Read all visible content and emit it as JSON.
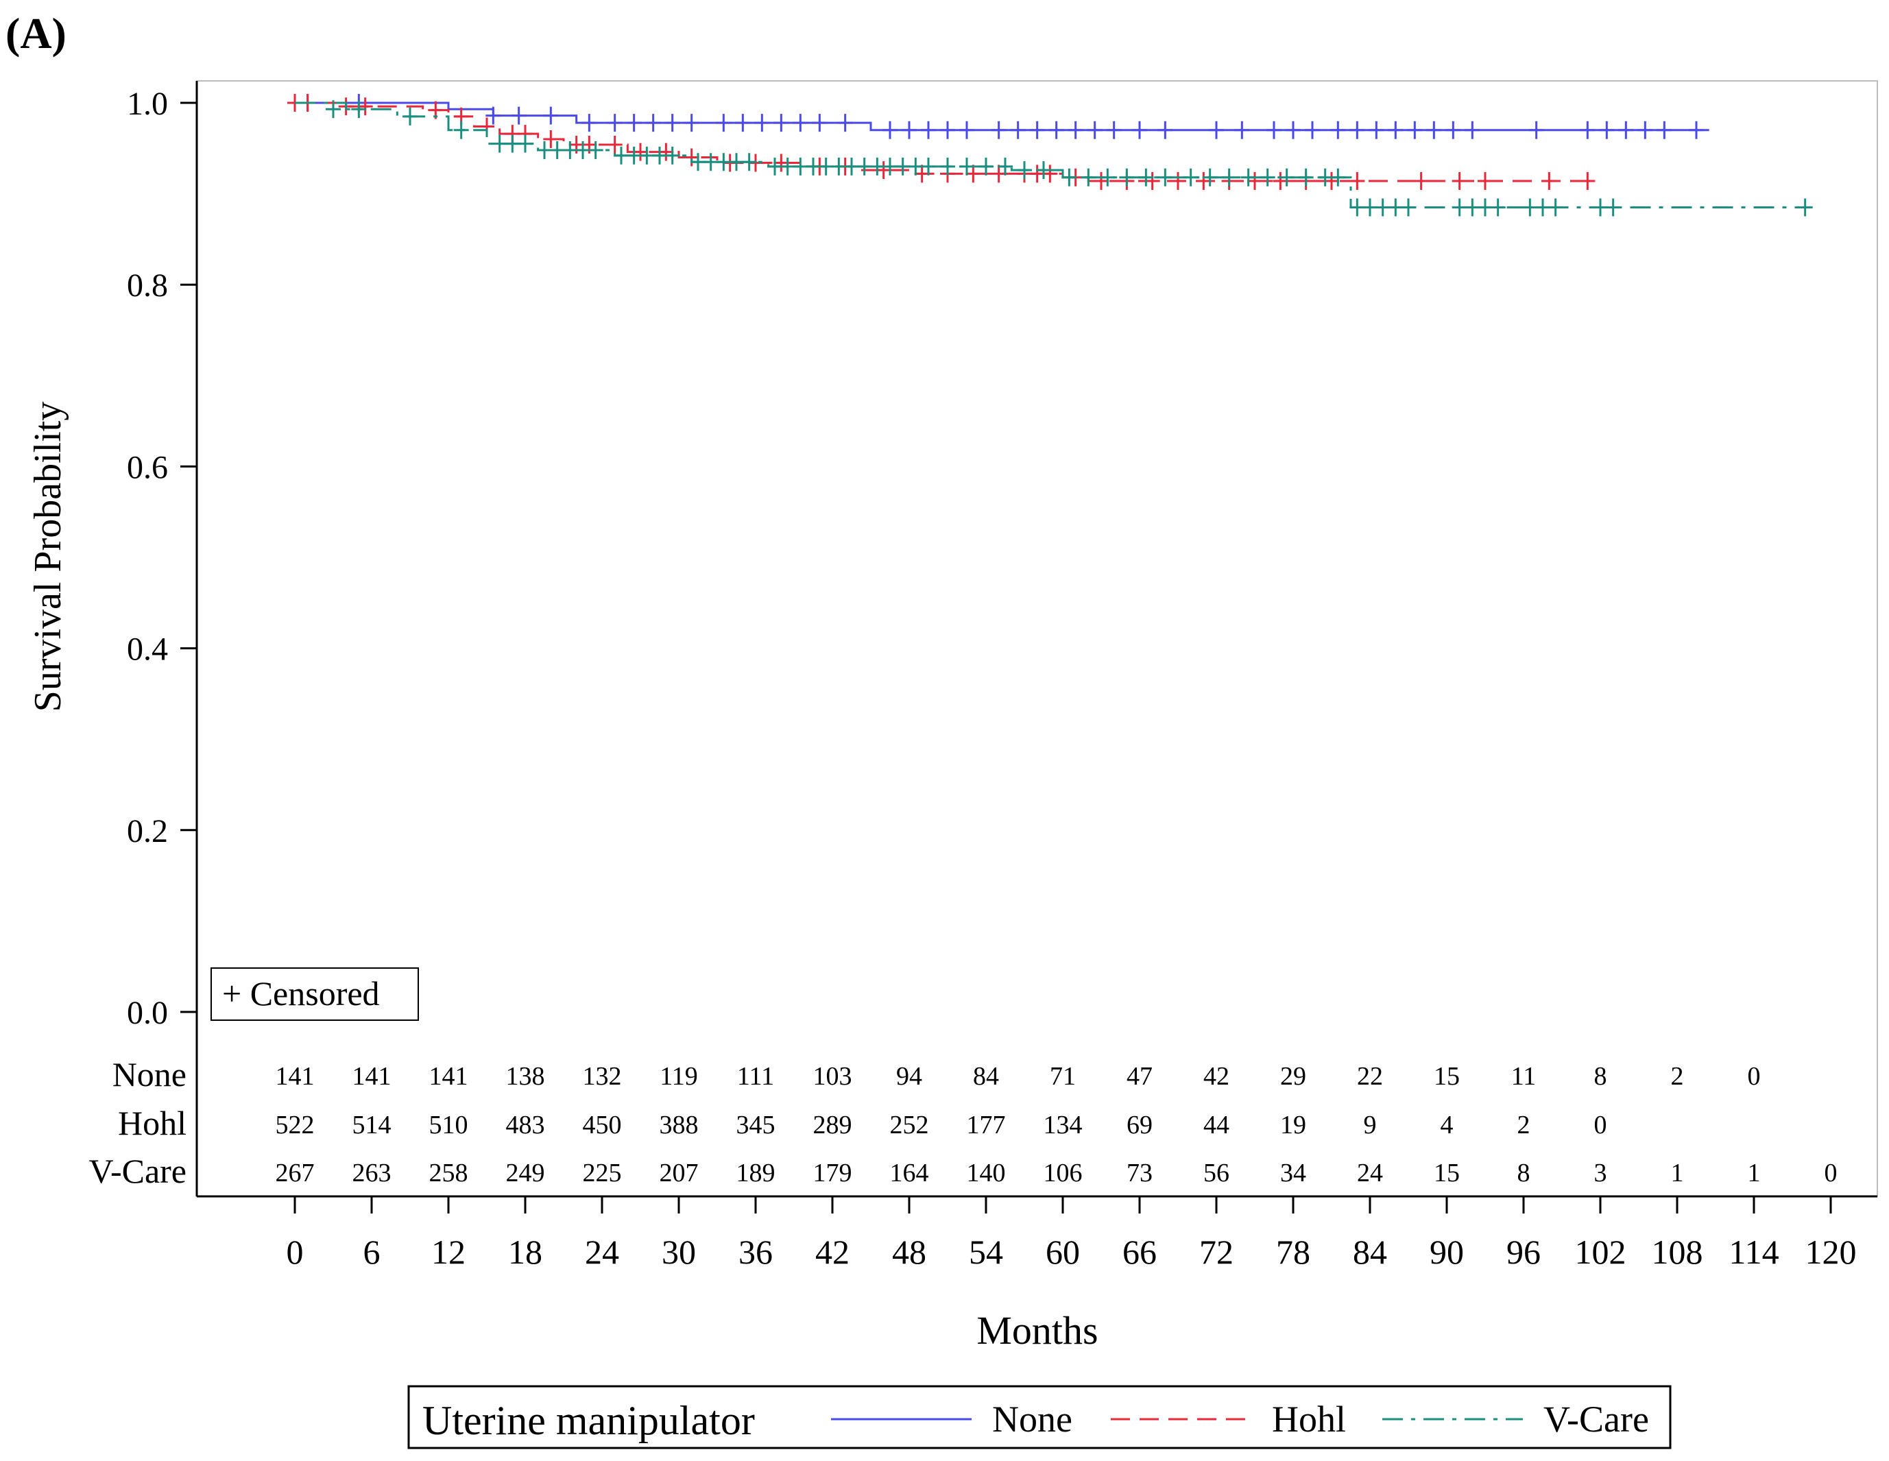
{
  "panel_label": "(A)",
  "chart_data": {
    "type": "line",
    "subtype": "kaplan-meier",
    "title": "",
    "xlabel": "Months",
    "ylabel": "Survival Probability",
    "xlim": [
      0,
      120
    ],
    "ylim": [
      0,
      1
    ],
    "xticks": [
      0,
      6,
      12,
      18,
      24,
      30,
      36,
      42,
      48,
      54,
      60,
      66,
      72,
      78,
      84,
      90,
      96,
      102,
      108,
      114,
      120
    ],
    "yticks": [
      "0.0",
      "0.2",
      "0.4",
      "0.6",
      "0.8",
      "1.0"
    ],
    "censor_legend": "+ Censored",
    "legend": {
      "title": "Uterine manipulator",
      "position": "bottom",
      "entries": [
        "None",
        "Hohl",
        "V-Care"
      ]
    },
    "series": [
      {
        "name": "None",
        "color": "#4a4ae8",
        "dash": "solid",
        "steps": [
          [
            0,
            1.0
          ],
          [
            12,
            0.993
          ],
          [
            15.5,
            0.986
          ],
          [
            22,
            0.978
          ],
          [
            45,
            0.97
          ],
          [
            110.5,
            0.97
          ]
        ],
        "censored": [
          [
            1,
            1.0
          ],
          [
            5,
            1.0
          ],
          [
            15.5,
            0.986
          ],
          [
            17.5,
            0.986
          ],
          [
            20,
            0.986
          ],
          [
            23,
            0.978
          ],
          [
            25,
            0.978
          ],
          [
            26.5,
            0.978
          ],
          [
            28,
            0.978
          ],
          [
            29.5,
            0.978
          ],
          [
            31,
            0.978
          ],
          [
            33.5,
            0.978
          ],
          [
            35,
            0.978
          ],
          [
            36.5,
            0.978
          ],
          [
            38,
            0.978
          ],
          [
            39.5,
            0.978
          ],
          [
            41,
            0.978
          ],
          [
            43,
            0.978
          ],
          [
            46.5,
            0.97
          ],
          [
            48,
            0.97
          ],
          [
            49.5,
            0.97
          ],
          [
            51,
            0.97
          ],
          [
            52.5,
            0.97
          ],
          [
            55,
            0.97
          ],
          [
            56.5,
            0.97
          ],
          [
            58,
            0.97
          ],
          [
            59.5,
            0.97
          ],
          [
            61,
            0.97
          ],
          [
            62.5,
            0.97
          ],
          [
            64,
            0.97
          ],
          [
            66,
            0.97
          ],
          [
            68,
            0.97
          ],
          [
            72,
            0.97
          ],
          [
            74,
            0.97
          ],
          [
            76.5,
            0.97
          ],
          [
            78,
            0.97
          ],
          [
            79.5,
            0.97
          ],
          [
            81.5,
            0.97
          ],
          [
            83,
            0.97
          ],
          [
            84.5,
            0.97
          ],
          [
            86,
            0.97
          ],
          [
            87.5,
            0.97
          ],
          [
            89,
            0.97
          ],
          [
            90.5,
            0.97
          ],
          [
            92,
            0.97
          ],
          [
            97,
            0.97
          ],
          [
            101,
            0.97
          ],
          [
            102.5,
            0.97
          ],
          [
            104,
            0.97
          ],
          [
            105.5,
            0.97
          ],
          [
            107,
            0.97
          ],
          [
            109.5,
            0.97
          ]
        ]
      },
      {
        "name": "Hohl",
        "color": "#e8283a",
        "dash": "dashed",
        "steps": [
          [
            0,
            1.0
          ],
          [
            4,
            0.996
          ],
          [
            10,
            0.992
          ],
          [
            12,
            0.985
          ],
          [
            14,
            0.974
          ],
          [
            16,
            0.966
          ],
          [
            19,
            0.96
          ],
          [
            21,
            0.954
          ],
          [
            26,
            0.946
          ],
          [
            30,
            0.94
          ],
          [
            33,
            0.934
          ],
          [
            40,
            0.93
          ],
          [
            44,
            0.926
          ],
          [
            48,
            0.922
          ],
          [
            56,
            0.922
          ],
          [
            60,
            0.918
          ],
          [
            62,
            0.914
          ],
          [
            84,
            0.914
          ],
          [
            101,
            0.914
          ]
        ],
        "censored": [
          [
            0,
            1.0
          ],
          [
            1,
            1.0
          ],
          [
            4,
            0.996
          ],
          [
            5.5,
            0.996
          ],
          [
            11,
            0.992
          ],
          [
            13,
            0.985
          ],
          [
            15,
            0.974
          ],
          [
            17,
            0.966
          ],
          [
            18,
            0.966
          ],
          [
            20,
            0.96
          ],
          [
            22,
            0.954
          ],
          [
            23,
            0.954
          ],
          [
            25,
            0.954
          ],
          [
            27,
            0.946
          ],
          [
            29,
            0.946
          ],
          [
            31,
            0.94
          ],
          [
            34,
            0.934
          ],
          [
            36,
            0.934
          ],
          [
            38,
            0.934
          ],
          [
            41,
            0.93
          ],
          [
            43,
            0.93
          ],
          [
            46,
            0.926
          ],
          [
            49,
            0.922
          ],
          [
            51,
            0.922
          ],
          [
            53,
            0.922
          ],
          [
            55,
            0.922
          ],
          [
            57,
            0.922
          ],
          [
            58,
            0.922
          ],
          [
            59,
            0.922
          ],
          [
            61,
            0.918
          ],
          [
            63,
            0.914
          ],
          [
            65,
            0.914
          ],
          [
            67,
            0.914
          ],
          [
            69,
            0.914
          ],
          [
            71,
            0.914
          ],
          [
            73,
            0.914
          ],
          [
            75,
            0.914
          ],
          [
            77,
            0.914
          ],
          [
            79,
            0.914
          ],
          [
            81,
            0.914
          ],
          [
            83,
            0.914
          ],
          [
            88,
            0.914
          ],
          [
            91,
            0.914
          ],
          [
            93,
            0.914
          ],
          [
            98,
            0.914
          ],
          [
            101,
            0.914
          ]
        ]
      },
      {
        "name": "V-Care",
        "color": "#1a8f80",
        "dash": "dashdot",
        "steps": [
          [
            0,
            1.0
          ],
          [
            4,
            0.993
          ],
          [
            8,
            0.985
          ],
          [
            12,
            0.97
          ],
          [
            15,
            0.955
          ],
          [
            19,
            0.948
          ],
          [
            25,
            0.942
          ],
          [
            31,
            0.935
          ],
          [
            37,
            0.93
          ],
          [
            56,
            0.926
          ],
          [
            60,
            0.918
          ],
          [
            82,
            0.918
          ],
          [
            82.5,
            0.885
          ],
          [
            118,
            0.885
          ]
        ],
        "censored": [
          [
            3,
            0.993
          ],
          [
            5,
            0.993
          ],
          [
            9,
            0.985
          ],
          [
            13,
            0.97
          ],
          [
            16,
            0.955
          ],
          [
            17,
            0.955
          ],
          [
            18,
            0.955
          ],
          [
            19.5,
            0.948
          ],
          [
            20.5,
            0.948
          ],
          [
            21.5,
            0.948
          ],
          [
            22.5,
            0.948
          ],
          [
            23.5,
            0.948
          ],
          [
            25.5,
            0.942
          ],
          [
            26.5,
            0.942
          ],
          [
            27.5,
            0.942
          ],
          [
            28.5,
            0.942
          ],
          [
            29.5,
            0.942
          ],
          [
            31.5,
            0.935
          ],
          [
            32.5,
            0.935
          ],
          [
            33.5,
            0.935
          ],
          [
            34.5,
            0.935
          ],
          [
            35.5,
            0.935
          ],
          [
            37.5,
            0.93
          ],
          [
            38.5,
            0.93
          ],
          [
            39.5,
            0.93
          ],
          [
            40.5,
            0.93
          ],
          [
            41.5,
            0.93
          ],
          [
            42.5,
            0.93
          ],
          [
            43.5,
            0.93
          ],
          [
            44.5,
            0.93
          ],
          [
            45.5,
            0.93
          ],
          [
            46.5,
            0.93
          ],
          [
            47.5,
            0.93
          ],
          [
            48.5,
            0.93
          ],
          [
            49.5,
            0.93
          ],
          [
            51,
            0.93
          ],
          [
            52.5,
            0.93
          ],
          [
            54,
            0.93
          ],
          [
            55.5,
            0.93
          ],
          [
            57,
            0.926
          ],
          [
            58.5,
            0.926
          ],
          [
            60.5,
            0.918
          ],
          [
            62,
            0.918
          ],
          [
            63.5,
            0.918
          ],
          [
            65,
            0.918
          ],
          [
            66.5,
            0.918
          ],
          [
            68,
            0.918
          ],
          [
            70,
            0.918
          ],
          [
            71.5,
            0.918
          ],
          [
            73,
            0.918
          ],
          [
            74.5,
            0.918
          ],
          [
            76,
            0.918
          ],
          [
            77.5,
            0.918
          ],
          [
            79,
            0.918
          ],
          [
            80.5,
            0.918
          ],
          [
            81.5,
            0.918
          ],
          [
            83,
            0.885
          ],
          [
            84,
            0.885
          ],
          [
            85,
            0.885
          ],
          [
            86,
            0.885
          ],
          [
            87,
            0.885
          ],
          [
            91,
            0.885
          ],
          [
            92,
            0.885
          ],
          [
            93,
            0.885
          ],
          [
            94,
            0.885
          ],
          [
            96.5,
            0.885
          ],
          [
            97.5,
            0.885
          ],
          [
            98.5,
            0.885
          ],
          [
            102,
            0.885
          ],
          [
            103,
            0.885
          ],
          [
            118,
            0.885
          ]
        ]
      }
    ],
    "at_risk": {
      "rows": [
        {
          "group": "None",
          "counts": [
            "141",
            "141",
            "141",
            "138",
            "132",
            "119",
            "111",
            "103",
            "94",
            "84",
            "71",
            "47",
            "42",
            "29",
            "22",
            "15",
            "11",
            "8",
            "2",
            "0"
          ]
        },
        {
          "group": "Hohl",
          "counts": [
            "522",
            "514",
            "510",
            "483",
            "450",
            "388",
            "345",
            "289",
            "252",
            "177",
            "134",
            "69",
            "44",
            "19",
            "9",
            "4",
            "2",
            "0"
          ]
        },
        {
          "group": "V-Care",
          "counts": [
            "267",
            "263",
            "258",
            "249",
            "225",
            "207",
            "189",
            "179",
            "164",
            "140",
            "106",
            "73",
            "56",
            "34",
            "24",
            "15",
            "8",
            "3",
            "1",
            "1",
            "0"
          ]
        }
      ]
    }
  }
}
